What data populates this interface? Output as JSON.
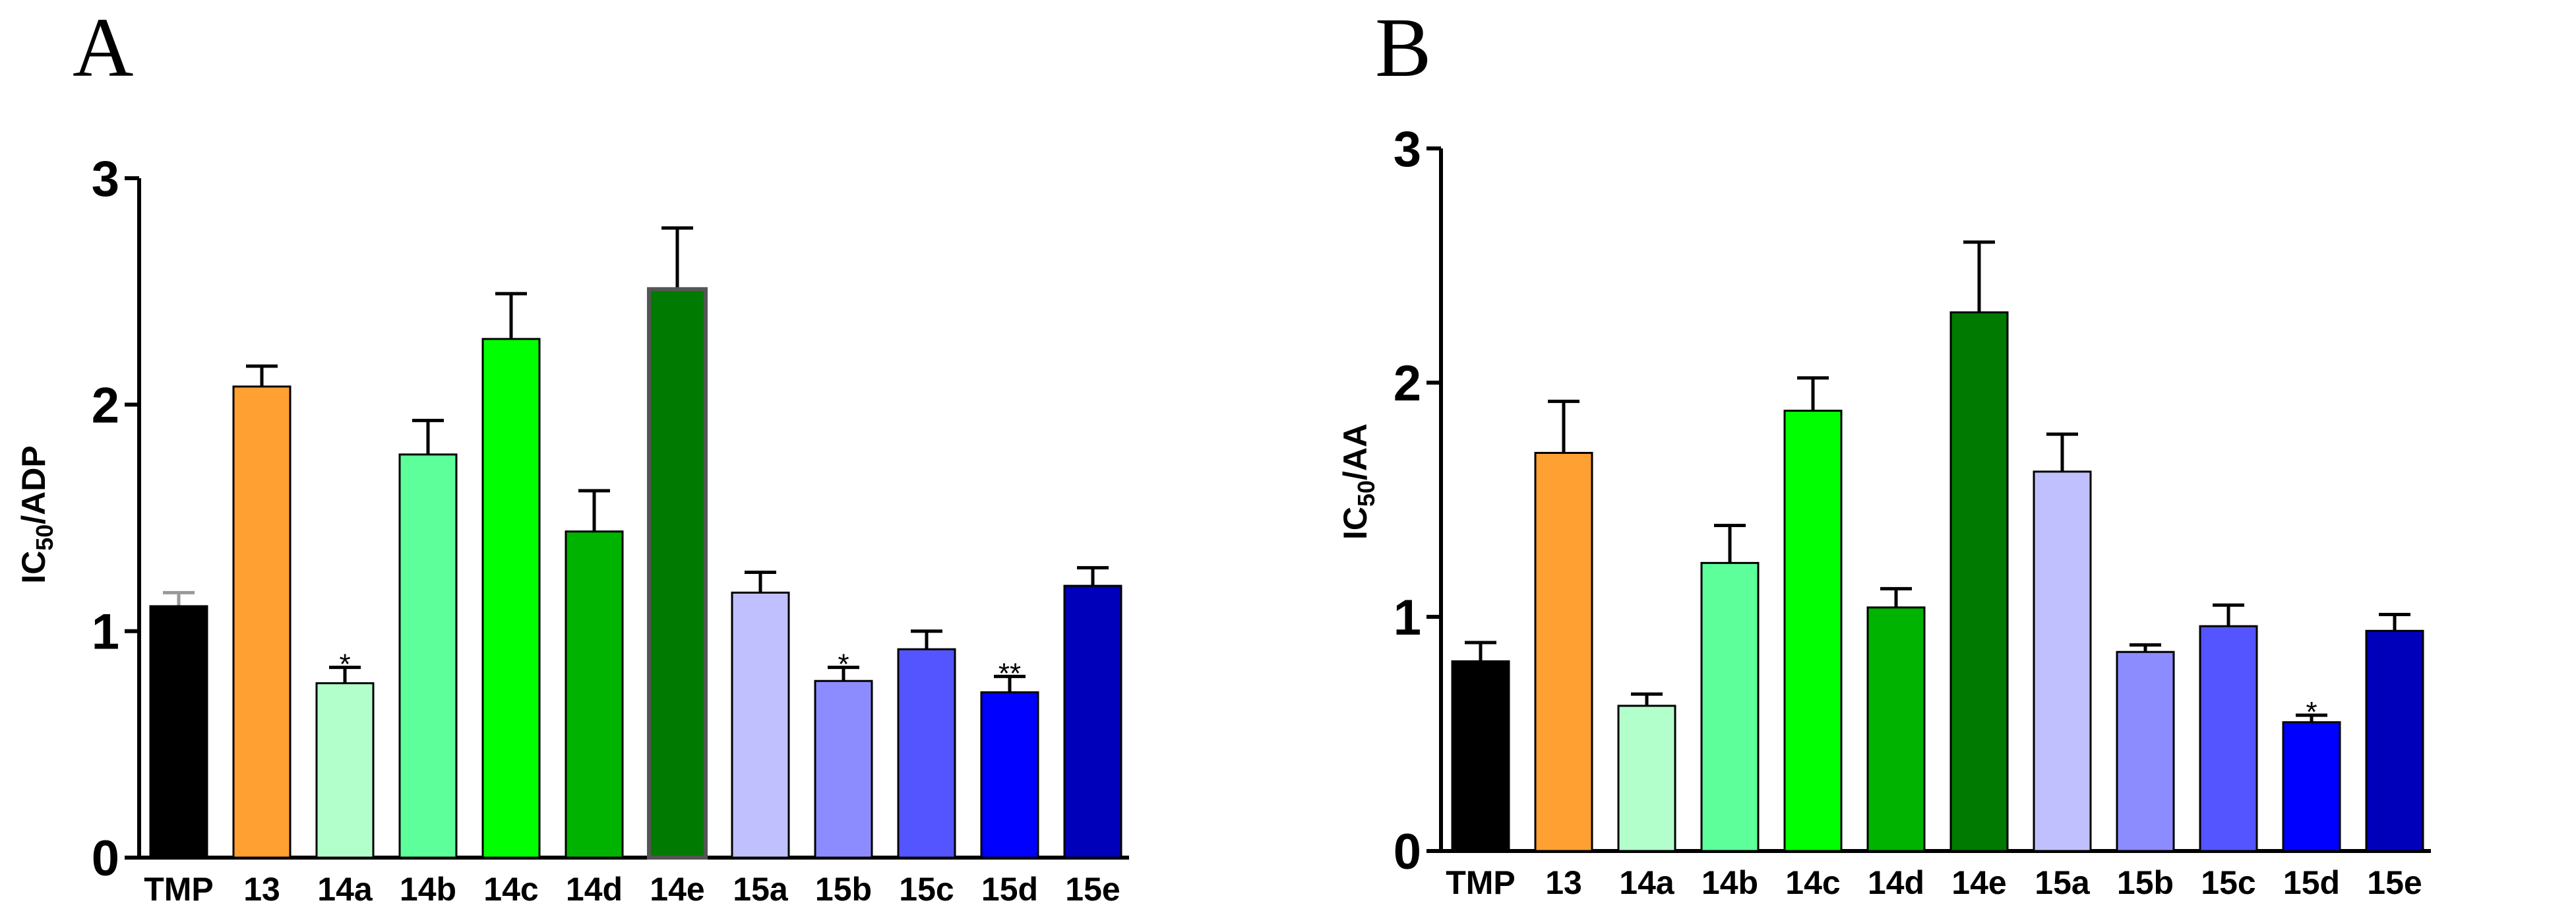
{
  "chart_data": [
    {
      "panel": "A",
      "type": "bar",
      "ylabel_main": "IC",
      "ylabel_sub": "50",
      "ylabel_rest": "/ADP",
      "ylim": [
        0,
        3
      ],
      "yticks": [
        "0",
        "1",
        "2",
        "3"
      ],
      "categories": [
        "TMP",
        "13",
        "14a",
        "14b",
        "14c",
        "14d",
        "14e",
        "15a",
        "15b",
        "15c",
        "15d",
        "15e"
      ],
      "values": [
        1.11,
        2.08,
        0.77,
        1.78,
        2.29,
        1.44,
        2.51,
        1.17,
        0.78,
        0.92,
        0.73,
        1.2
      ],
      "errors": [
        0.06,
        0.09,
        0.07,
        0.15,
        0.2,
        0.18,
        0.27,
        0.09,
        0.06,
        0.08,
        0.07,
        0.08
      ],
      "significance": [
        "",
        "",
        "*",
        "",
        "",
        "",
        "",
        "",
        "*",
        "",
        "**",
        ""
      ],
      "colors": [
        "#000000",
        "#FFA033",
        "#B3FFCC",
        "#5CFF99",
        "#00FF00",
        "#00B300",
        "#007A00",
        "#C0C0FF",
        "#8C8CFF",
        "#5555FF",
        "#0000FF",
        "#0000BB"
      ],
      "error_colors": [
        "#999999",
        "#000000",
        "#000000",
        "#000000",
        "#000000",
        "#000000",
        "#000000",
        "#000000",
        "#000000",
        "#000000",
        "#000000",
        "#000000"
      ]
    },
    {
      "panel": "B",
      "type": "bar",
      "ylabel_main": "IC",
      "ylabel_sub": "50",
      "ylabel_rest": "/AA",
      "ylim": [
        0,
        3
      ],
      "yticks": [
        "0",
        "1",
        "2",
        "3"
      ],
      "categories": [
        "TMP",
        "13",
        "14a",
        "14b",
        "14c",
        "14d",
        "14e",
        "15a",
        "15b",
        "15c",
        "15d",
        "15e"
      ],
      "values": [
        0.81,
        1.7,
        0.62,
        1.23,
        1.88,
        1.04,
        2.3,
        1.62,
        0.85,
        0.96,
        0.55,
        0.94
      ],
      "errors": [
        0.08,
        0.22,
        0.05,
        0.16,
        0.14,
        0.08,
        0.3,
        0.16,
        0.03,
        0.09,
        0.03,
        0.07
      ],
      "significance": [
        "",
        "",
        "",
        "",
        "",
        "",
        "",
        "",
        "",
        "",
        "*",
        ""
      ],
      "colors": [
        "#000000",
        "#FFA033",
        "#B3FFCC",
        "#5CFF99",
        "#00FF00",
        "#00B300",
        "#007A00",
        "#C0C0FF",
        "#8C8CFF",
        "#5555FF",
        "#0000FF",
        "#0000BB"
      ],
      "error_colors": [
        "#000000",
        "#000000",
        "#000000",
        "#000000",
        "#000000",
        "#000000",
        "#000000",
        "#000000",
        "#000000",
        "#000000",
        "#000000",
        "#000000"
      ]
    }
  ]
}
